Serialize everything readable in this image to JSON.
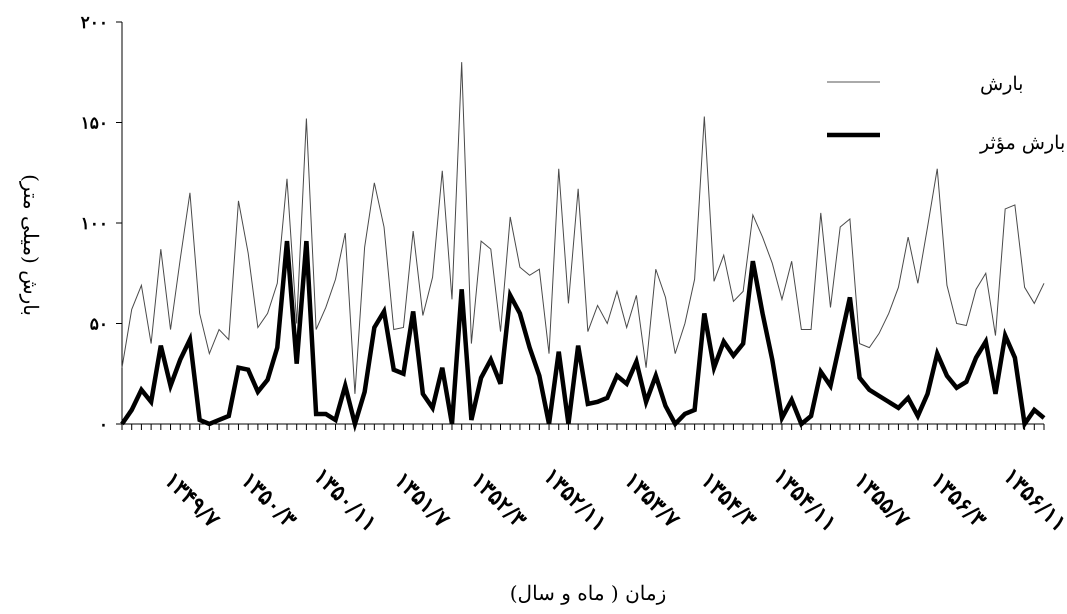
{
  "chart_data": {
    "type": "line",
    "xlabel": "زمان ( ماه و سال)",
    "ylabel": "بارش (میلی متر)",
    "ylim": [
      0,
      200
    ],
    "yticks": [
      0,
      50,
      100,
      150,
      200
    ],
    "ytick_labels": [
      "۰",
      "۵۰",
      "۱۰۰",
      "۱۵۰",
      "۲۰۰"
    ],
    "xtick_labels": [
      "۱۳۴۹/۷",
      "۱۳۵۰/۳",
      "۱۳۵۰/۱۱",
      "۱۳۵۱/۷",
      "۱۳۵۲/۳",
      "۱۳۵۲/۱۱",
      "۱۳۵۳/۷",
      "۱۳۵۴/۳",
      "۱۳۵۴/۱۱",
      "۱۳۵۵/۷",
      "۱۳۵۶/۳",
      "۱۳۵۶/۱۱"
    ],
    "legend_position": "top-right",
    "series": [
      {
        "name": "بارش",
        "color": "#000000",
        "style": "thin",
        "values": [
          28,
          57,
          69,
          40,
          87,
          47,
          82,
          115,
          55,
          35,
          47,
          42,
          111,
          85,
          48,
          55,
          70,
          122,
          50,
          152,
          47,
          58,
          72,
          95,
          15,
          88,
          120,
          98,
          47,
          48,
          96,
          54,
          73,
          126,
          62,
          180,
          40,
          91,
          87,
          46,
          103,
          78,
          74,
          77,
          35,
          127,
          60,
          117,
          46,
          59,
          50,
          66,
          48,
          64,
          28,
          77,
          63,
          35,
          50,
          72,
          153,
          71,
          84,
          61,
          66,
          104,
          93,
          80,
          62,
          81,
          47,
          47,
          105,
          58,
          98,
          102,
          40,
          38,
          45,
          55,
          68,
          93,
          70,
          98,
          127,
          69,
          50,
          49,
          67,
          75,
          44,
          107,
          109,
          68,
          60,
          70
        ]
      },
      {
        "name": "بارش مؤثر",
        "color": "#000000",
        "style": "thick",
        "values": [
          0,
          7,
          17,
          11,
          39,
          19,
          32,
          42,
          2,
          0,
          2,
          4,
          28,
          27,
          16,
          22,
          38,
          91,
          30,
          91,
          5,
          5,
          2,
          19,
          0,
          16,
          48,
          56,
          27,
          25,
          56,
          15,
          8,
          28,
          0,
          67,
          2,
          23,
          32,
          20,
          64,
          55,
          38,
          24,
          0,
          36,
          0,
          39,
          10,
          11,
          13,
          24,
          20,
          31,
          11,
          24,
          9,
          0,
          5,
          7,
          55,
          28,
          41,
          34,
          40,
          81,
          55,
          32,
          3,
          12,
          0,
          4,
          26,
          19,
          41,
          63,
          23,
          17,
          14,
          11,
          8,
          13,
          4,
          15,
          35,
          24,
          18,
          21,
          33,
          41,
          15,
          44,
          33,
          0,
          7,
          3
        ]
      }
    ]
  }
}
